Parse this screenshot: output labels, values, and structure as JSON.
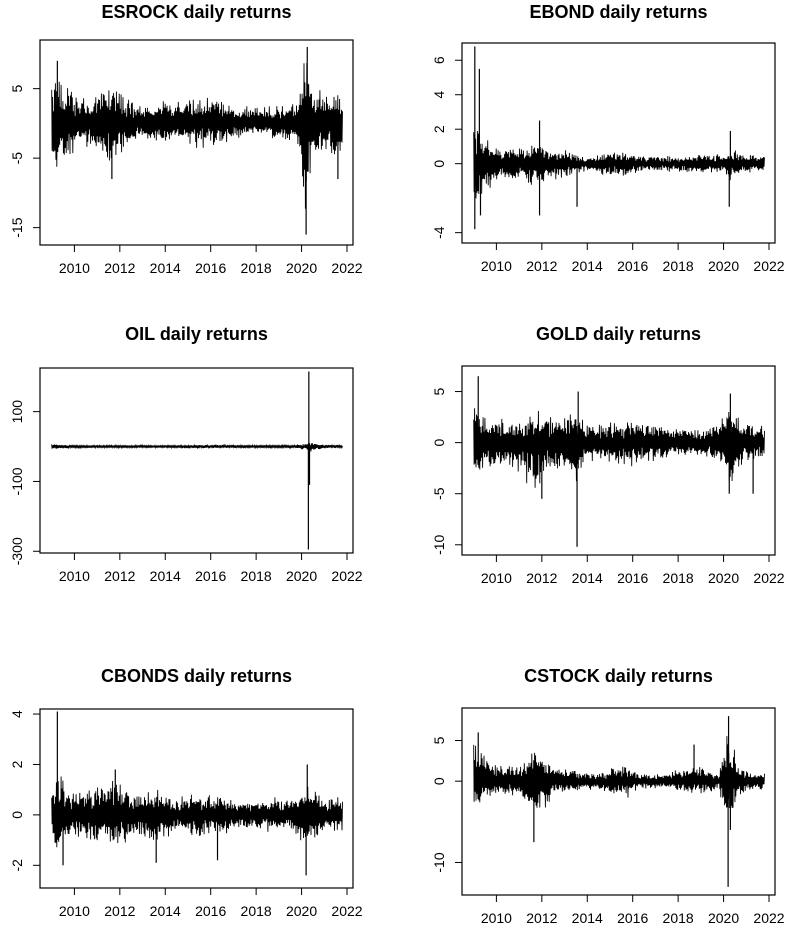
{
  "figure": {
    "background": "#ffffff",
    "line_color": "#000000"
  },
  "chart_data": [
    {
      "type": "line",
      "title": "ESROCK daily returns",
      "xlabel": "",
      "ylabel": "",
      "xlim": [
        2008.75,
        2022.0
      ],
      "ylim": [
        -17.5,
        12
      ],
      "xticks": [
        "2010",
        "2012",
        "2014",
        "2016",
        "2018",
        "2020",
        "2022"
      ],
      "yticks": [
        "-15",
        "-5",
        "5"
      ],
      "grid": false,
      "series": [
        {
          "amplitude_envelope": [
            [
              2009.0,
              6.0,
              -6.0
            ],
            [
              2009.2,
              9.0,
              -8.0
            ],
            [
              2009.5,
              7.0,
              -6.0
            ],
            [
              2010.0,
              5.0,
              -4.5
            ],
            [
              2010.5,
              4.5,
              -4.0
            ],
            [
              2011.0,
              4.0,
              -3.5
            ],
            [
              2011.6,
              6.5,
              -8.0
            ],
            [
              2012.0,
              5.0,
              -4.5
            ],
            [
              2012.5,
              4.0,
              -3.5
            ],
            [
              2013.0,
              3.0,
              -2.5
            ],
            [
              2014.0,
              3.5,
              -3.0
            ],
            [
              2015.0,
              3.5,
              -3.0
            ],
            [
              2015.5,
              4.5,
              -4.0
            ],
            [
              2016.0,
              4.0,
              -3.5
            ],
            [
              2017.0,
              3.0,
              -2.5
            ],
            [
              2018.0,
              2.5,
              -2.0
            ],
            [
              2019.0,
              3.0,
              -2.5
            ],
            [
              2019.8,
              3.0,
              -2.5
            ],
            [
              2020.15,
              11.0,
              -16.0
            ],
            [
              2020.5,
              6.0,
              -6.0
            ],
            [
              2021.0,
              5.0,
              -5.0
            ],
            [
              2021.5,
              5.0,
              -7.0
            ],
            [
              2021.8,
              3.0,
              -3.0
            ]
          ],
          "spikes": [
            [
              2020.2,
              -16.0
            ],
            [
              2020.25,
              11.0
            ],
            [
              2011.65,
              -8.0
            ],
            [
              2009.25,
              9.0
            ],
            [
              2021.6,
              -8.0
            ]
          ]
        }
      ]
    },
    {
      "type": "line",
      "title": "EBOND daily returns",
      "xlabel": "",
      "ylabel": "",
      "xlim": [
        2008.75,
        2022.0
      ],
      "ylim": [
        -4.6,
        7
      ],
      "xticks": [
        "2010",
        "2012",
        "2014",
        "2016",
        "2018",
        "2020",
        "2022"
      ],
      "yticks": [
        "-4",
        "0",
        "2",
        "4",
        "6"
      ],
      "grid": false,
      "series": [
        {
          "amplitude_envelope": [
            [
              2009.0,
              2.5,
              -3.0
            ],
            [
              2009.3,
              2.0,
              -2.0
            ],
            [
              2010.0,
              1.2,
              -1.2
            ],
            [
              2011.0,
              1.0,
              -1.0
            ],
            [
              2011.5,
              1.5,
              -1.5
            ],
            [
              2012.0,
              1.2,
              -1.2
            ],
            [
              2013.0,
              0.8,
              -0.8
            ],
            [
              2014.0,
              0.5,
              -0.5
            ],
            [
              2015.0,
              0.8,
              -0.8
            ],
            [
              2016.0,
              0.7,
              -0.7
            ],
            [
              2017.0,
              0.5,
              -0.5
            ],
            [
              2018.0,
              0.5,
              -0.5
            ],
            [
              2019.0,
              0.6,
              -0.6
            ],
            [
              2020.0,
              0.6,
              -0.6
            ],
            [
              2020.3,
              1.0,
              -1.0
            ],
            [
              2021.0,
              0.6,
              -0.6
            ],
            [
              2021.8,
              0.5,
              -0.5
            ]
          ],
          "spikes": [
            [
              2009.05,
              6.8
            ],
            [
              2009.05,
              -3.8
            ],
            [
              2009.25,
              5.5
            ],
            [
              2009.3,
              -3.0
            ],
            [
              2011.9,
              2.5
            ],
            [
              2011.9,
              -3.0
            ],
            [
              2013.55,
              -2.5
            ],
            [
              2020.25,
              -2.5
            ],
            [
              2020.3,
              1.9
            ]
          ]
        }
      ]
    },
    {
      "type": "line",
      "title": "OIL daily returns",
      "xlabel": "",
      "ylabel": "",
      "xlim": [
        2008.75,
        2022.0
      ],
      "ylim": [
        -305,
        225
      ],
      "xticks": [
        "2010",
        "2012",
        "2014",
        "2016",
        "2018",
        "2020",
        "2022"
      ],
      "yticks": [
        "-300",
        "-100",
        "100"
      ],
      "grid": false,
      "series": [
        {
          "amplitude_envelope": [
            [
              2009.0,
              10.0,
              -10.0
            ],
            [
              2009.5,
              6.0,
              -6.0
            ],
            [
              2010.0,
              4.0,
              -4.0
            ],
            [
              2012.0,
              4.0,
              -4.0
            ],
            [
              2014.0,
              3.0,
              -3.0
            ],
            [
              2015.0,
              6.0,
              -6.0
            ],
            [
              2016.0,
              6.0,
              -6.0
            ],
            [
              2018.0,
              4.0,
              -4.0
            ],
            [
              2019.5,
              4.0,
              -4.0
            ],
            [
              2020.15,
              10.0,
              -10.0
            ],
            [
              2020.4,
              15.0,
              -20.0
            ],
            [
              2021.0,
              6.0,
              -6.0
            ],
            [
              2021.8,
              4.0,
              -4.0
            ]
          ],
          "spikes": [
            [
              2020.3,
              -295.0
            ],
            [
              2020.32,
              215.0
            ],
            [
              2020.35,
              -110.0
            ]
          ]
        }
      ]
    },
    {
      "type": "line",
      "title": "GOLD daily returns",
      "xlabel": "",
      "ylabel": "",
      "xlim": [
        2008.75,
        2022.0
      ],
      "ylim": [
        -11,
        7.5
      ],
      "xticks": [
        "2010",
        "2012",
        "2014",
        "2016",
        "2018",
        "2020",
        "2022"
      ],
      "yticks": [
        "-10",
        "-5",
        "0",
        "5"
      ],
      "grid": false,
      "series": [
        {
          "amplitude_envelope": [
            [
              2009.0,
              4.0,
              -3.5
            ],
            [
              2010.0,
              2.5,
              -2.5
            ],
            [
              2011.0,
              2.5,
              -3.0
            ],
            [
              2011.7,
              3.5,
              -5.5
            ],
            [
              2012.5,
              2.5,
              -2.5
            ],
            [
              2013.5,
              3.5,
              -4.5
            ],
            [
              2014.0,
              2.0,
              -2.0
            ],
            [
              2015.0,
              2.0,
              -2.0
            ],
            [
              2016.0,
              2.5,
              -2.5
            ],
            [
              2017.0,
              2.0,
              -2.0
            ],
            [
              2018.0,
              1.5,
              -1.5
            ],
            [
              2019.0,
              1.5,
              -1.5
            ],
            [
              2020.0,
              2.5,
              -2.5
            ],
            [
              2020.3,
              3.5,
              -4.5
            ],
            [
              2021.0,
              2.0,
              -2.0
            ],
            [
              2021.8,
              2.0,
              -2.0
            ]
          ],
          "spikes": [
            [
              2009.2,
              6.5
            ],
            [
              2013.55,
              -10.2
            ],
            [
              2013.6,
              5.0
            ],
            [
              2012.0,
              -5.5
            ],
            [
              2020.3,
              4.8
            ],
            [
              2020.25,
              -5.0
            ],
            [
              2021.3,
              -5.0
            ]
          ]
        }
      ]
    },
    {
      "type": "line",
      "title": "CBONDS daily returns",
      "xlabel": "",
      "ylabel": "",
      "xlim": [
        2008.75,
        2022.0
      ],
      "ylim": [
        -2.9,
        4.2
      ],
      "xticks": [
        "2010",
        "2012",
        "2014",
        "2016",
        "2018",
        "2020",
        "2022"
      ],
      "yticks": [
        "-2",
        "0",
        "2",
        "4"
      ],
      "grid": false,
      "series": [
        {
          "amplitude_envelope": [
            [
              2009.0,
              1.5,
              -1.5
            ],
            [
              2009.3,
              1.8,
              -1.8
            ],
            [
              2010.0,
              1.0,
              -1.0
            ],
            [
              2011.0,
              1.2,
              -1.2
            ],
            [
              2011.7,
              1.6,
              -1.6
            ],
            [
              2012.5,
              1.0,
              -1.0
            ],
            [
              2013.5,
              1.2,
              -1.2
            ],
            [
              2014.5,
              0.8,
              -0.8
            ],
            [
              2015.5,
              1.0,
              -1.0
            ],
            [
              2016.5,
              0.8,
              -0.8
            ],
            [
              2017.5,
              0.6,
              -0.6
            ],
            [
              2018.5,
              0.7,
              -0.7
            ],
            [
              2019.5,
              0.8,
              -0.8
            ],
            [
              2020.2,
              1.2,
              -1.2
            ],
            [
              2021.0,
              0.8,
              -0.8
            ],
            [
              2021.8,
              0.7,
              -0.7
            ]
          ],
          "spikes": [
            [
              2009.25,
              4.1
            ],
            [
              2009.5,
              -2.0
            ],
            [
              2011.8,
              1.8
            ],
            [
              2013.6,
              -1.9
            ],
            [
              2016.3,
              -1.8
            ],
            [
              2020.2,
              -2.4
            ],
            [
              2020.25,
              2.0
            ]
          ]
        }
      ]
    },
    {
      "type": "line",
      "title": "CSTOCK daily returns",
      "xlabel": "",
      "ylabel": "",
      "xlim": [
        2008.75,
        2022.0
      ],
      "ylim": [
        -14,
        9
      ],
      "xticks": [
        "2010",
        "2012",
        "2014",
        "2016",
        "2018",
        "2020",
        "2022"
      ],
      "yticks": [
        "-10",
        "0",
        "5"
      ],
      "grid": false,
      "series": [
        {
          "amplitude_envelope": [
            [
              2009.0,
              5.0,
              -4.0
            ],
            [
              2009.3,
              4.0,
              -3.0
            ],
            [
              2010.0,
              2.0,
              -2.0
            ],
            [
              2011.0,
              2.0,
              -2.0
            ],
            [
              2011.6,
              4.0,
              -6.0
            ],
            [
              2012.5,
              2.0,
              -2.0
            ],
            [
              2013.5,
              1.5,
              -1.5
            ],
            [
              2014.5,
              1.0,
              -1.0
            ],
            [
              2015.5,
              2.5,
              -2.5
            ],
            [
              2016.5,
              1.0,
              -1.0
            ],
            [
              2017.5,
              1.0,
              -1.0
            ],
            [
              2018.5,
              2.0,
              -2.0
            ],
            [
              2019.0,
              2.0,
              -2.0
            ],
            [
              2019.8,
              1.0,
              -1.0
            ],
            [
              2020.2,
              8.0,
              -7.0
            ],
            [
              2020.6,
              2.5,
              -2.5
            ],
            [
              2021.0,
              1.5,
              -1.5
            ],
            [
              2021.8,
              1.0,
              -1.0
            ]
          ],
          "spikes": [
            [
              2009.2,
              6.0
            ],
            [
              2011.65,
              -7.5
            ],
            [
              2018.7,
              4.5
            ],
            [
              2020.2,
              -13.0
            ],
            [
              2020.22,
              8.0
            ],
            [
              2020.3,
              -6.0
            ]
          ]
        }
      ]
    }
  ]
}
